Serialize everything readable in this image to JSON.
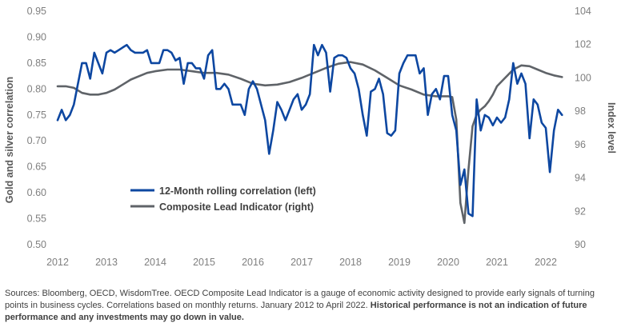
{
  "chart_data": {
    "type": "line",
    "x_ticks": [
      "2012",
      "2013",
      "2014",
      "2015",
      "2016",
      "2017",
      "2018",
      "2019",
      "2020",
      "2021",
      "2022"
    ],
    "y_left": {
      "label": "Gold and silver correlation",
      "ylim": [
        0.5,
        0.95
      ],
      "ticks": [
        "0.95",
        "0.90",
        "0.85",
        "0.80",
        "0.75",
        "0.70",
        "0.65",
        "0.60",
        "0.55",
        "0.50"
      ]
    },
    "y_right": {
      "label": "Index level",
      "ylim": [
        90,
        104
      ],
      "ticks": [
        "104",
        "102",
        "100",
        "98",
        "96",
        "94",
        "92",
        "90"
      ]
    },
    "grid": false,
    "legend_placement": "bottom-left",
    "series": [
      {
        "name": "12-Month rolling correlation (left)",
        "axis": "left",
        "color": "#0d47a1",
        "points": [
          [
            "2012-01",
            0.74
          ],
          [
            "2012-02",
            0.76
          ],
          [
            "2012-03",
            0.74
          ],
          [
            "2012-04",
            0.75
          ],
          [
            "2012-05",
            0.77
          ],
          [
            "2012-06",
            0.81
          ],
          [
            "2012-07",
            0.85
          ],
          [
            "2012-08",
            0.85
          ],
          [
            "2012-09",
            0.82
          ],
          [
            "2012-10",
            0.87
          ],
          [
            "2012-11",
            0.85
          ],
          [
            "2012-12",
            0.83
          ],
          [
            "2013-01",
            0.87
          ],
          [
            "2013-02",
            0.875
          ],
          [
            "2013-03",
            0.87
          ],
          [
            "2013-04",
            0.875
          ],
          [
            "2013-05",
            0.88
          ],
          [
            "2013-06",
            0.885
          ],
          [
            "2013-07",
            0.875
          ],
          [
            "2013-08",
            0.87
          ],
          [
            "2013-09",
            0.87
          ],
          [
            "2013-10",
            0.87
          ],
          [
            "2013-11",
            0.875
          ],
          [
            "2013-12",
            0.85
          ],
          [
            "2014-01",
            0.85
          ],
          [
            "2014-02",
            0.85
          ],
          [
            "2014-03",
            0.875
          ],
          [
            "2014-04",
            0.875
          ],
          [
            "2014-05",
            0.87
          ],
          [
            "2014-06",
            0.855
          ],
          [
            "2014-07",
            0.86
          ],
          [
            "2014-08",
            0.81
          ],
          [
            "2014-09",
            0.85
          ],
          [
            "2014-10",
            0.85
          ],
          [
            "2014-11",
            0.84
          ],
          [
            "2014-12",
            0.84
          ],
          [
            "2015-01",
            0.82
          ],
          [
            "2015-02",
            0.865
          ],
          [
            "2015-03",
            0.875
          ],
          [
            "2015-04",
            0.8
          ],
          [
            "2015-05",
            0.8
          ],
          [
            "2015-06",
            0.81
          ],
          [
            "2015-07",
            0.8
          ],
          [
            "2015-08",
            0.77
          ],
          [
            "2015-09",
            0.77
          ],
          [
            "2015-10",
            0.77
          ],
          [
            "2015-11",
            0.75
          ],
          [
            "2015-12",
            0.8
          ],
          [
            "2016-01",
            0.815
          ],
          [
            "2016-02",
            0.8
          ],
          [
            "2016-03",
            0.77
          ],
          [
            "2016-04",
            0.74
          ],
          [
            "2016-05",
            0.675
          ],
          [
            "2016-06",
            0.72
          ],
          [
            "2016-07",
            0.775
          ],
          [
            "2016-08",
            0.76
          ],
          [
            "2016-09",
            0.74
          ],
          [
            "2016-10",
            0.76
          ],
          [
            "2016-11",
            0.78
          ],
          [
            "2016-12",
            0.79
          ],
          [
            "2017-01",
            0.76
          ],
          [
            "2017-02",
            0.77
          ],
          [
            "2017-03",
            0.79
          ],
          [
            "2017-04",
            0.885
          ],
          [
            "2017-05",
            0.865
          ],
          [
            "2017-06",
            0.885
          ],
          [
            "2017-07",
            0.87
          ],
          [
            "2017-08",
            0.795
          ],
          [
            "2017-09",
            0.86
          ],
          [
            "2017-10",
            0.865
          ],
          [
            "2017-11",
            0.865
          ],
          [
            "2017-12",
            0.86
          ],
          [
            "2018-01",
            0.84
          ],
          [
            "2018-02",
            0.83
          ],
          [
            "2018-03",
            0.8
          ],
          [
            "2018-04",
            0.75
          ],
          [
            "2018-05",
            0.71
          ],
          [
            "2018-06",
            0.795
          ],
          [
            "2018-07",
            0.8
          ],
          [
            "2018-08",
            0.82
          ],
          [
            "2018-09",
            0.79
          ],
          [
            "2018-10",
            0.715
          ],
          [
            "2018-11",
            0.71
          ],
          [
            "2018-12",
            0.72
          ],
          [
            "2019-01",
            0.83
          ],
          [
            "2019-02",
            0.85
          ],
          [
            "2019-03",
            0.865
          ],
          [
            "2019-04",
            0.865
          ],
          [
            "2019-05",
            0.865
          ],
          [
            "2019-06",
            0.83
          ],
          [
            "2019-07",
            0.84
          ],
          [
            "2019-08",
            0.75
          ],
          [
            "2019-09",
            0.79
          ],
          [
            "2019-10",
            0.8
          ],
          [
            "2019-11",
            0.78
          ],
          [
            "2019-12",
            0.825
          ],
          [
            "2020-01",
            0.825
          ],
          [
            "2020-02",
            0.75
          ],
          [
            "2020-03",
            0.72
          ],
          [
            "2020-04",
            0.615
          ],
          [
            "2020-05",
            0.645
          ],
          [
            "2020-06",
            0.56
          ],
          [
            "2020-07",
            0.555
          ],
          [
            "2020-08",
            0.78
          ],
          [
            "2020-09",
            0.72
          ],
          [
            "2020-10",
            0.75
          ],
          [
            "2020-11",
            0.745
          ],
          [
            "2020-12",
            0.73
          ],
          [
            "2021-01",
            0.745
          ],
          [
            "2021-02",
            0.735
          ],
          [
            "2021-03",
            0.745
          ],
          [
            "2021-04",
            0.78
          ],
          [
            "2021-05",
            0.85
          ],
          [
            "2021-06",
            0.81
          ],
          [
            "2021-07",
            0.83
          ],
          [
            "2021-08",
            0.81
          ],
          [
            "2021-09",
            0.705
          ],
          [
            "2021-10",
            0.78
          ],
          [
            "2021-11",
            0.77
          ],
          [
            "2021-12",
            0.735
          ],
          [
            "2022-01",
            0.725
          ],
          [
            "2022-02",
            0.64
          ],
          [
            "2022-03",
            0.72
          ],
          [
            "2022-04",
            0.76
          ],
          [
            "2022-05",
            0.75
          ]
        ]
      },
      {
        "name": "Composite Lead Indicator (right)",
        "axis": "right",
        "color": "#5f6368",
        "points": [
          [
            "2012-01",
            99.5
          ],
          [
            "2012-03",
            99.5
          ],
          [
            "2012-05",
            99.4
          ],
          [
            "2012-07",
            99.1
          ],
          [
            "2012-09",
            99.0
          ],
          [
            "2012-11",
            99.0
          ],
          [
            "2013-01",
            99.1
          ],
          [
            "2013-03",
            99.3
          ],
          [
            "2013-05",
            99.6
          ],
          [
            "2013-07",
            99.9
          ],
          [
            "2013-09",
            100.1
          ],
          [
            "2013-11",
            100.3
          ],
          [
            "2014-01",
            100.4
          ],
          [
            "2014-04",
            100.5
          ],
          [
            "2014-07",
            100.5
          ],
          [
            "2014-10",
            100.4
          ],
          [
            "2015-01",
            100.3
          ],
          [
            "2015-04",
            100.3
          ],
          [
            "2015-07",
            100.2
          ],
          [
            "2015-10",
            99.95
          ],
          [
            "2016-01",
            99.65
          ],
          [
            "2016-04",
            99.55
          ],
          [
            "2016-07",
            99.6
          ],
          [
            "2016-10",
            99.75
          ],
          [
            "2017-01",
            100.0
          ],
          [
            "2017-04",
            100.3
          ],
          [
            "2017-07",
            100.6
          ],
          [
            "2017-10",
            100.85
          ],
          [
            "2018-01",
            100.95
          ],
          [
            "2018-04",
            100.8
          ],
          [
            "2018-07",
            100.45
          ],
          [
            "2018-10",
            100.0
          ],
          [
            "2019-01",
            99.55
          ],
          [
            "2019-04",
            99.3
          ],
          [
            "2019-07",
            99.0
          ],
          [
            "2019-10",
            98.9
          ],
          [
            "2020-01",
            98.9
          ],
          [
            "2020-02",
            98.85
          ],
          [
            "2020-03",
            97.5
          ],
          [
            "2020-04",
            92.5
          ],
          [
            "2020-05",
            91.3
          ],
          [
            "2020-06",
            94.5
          ],
          [
            "2020-07",
            97.1
          ],
          [
            "2020-08",
            97.8
          ],
          [
            "2020-09",
            98.1
          ],
          [
            "2020-10",
            98.3
          ],
          [
            "2020-11",
            98.6
          ],
          [
            "2020-12",
            99.0
          ],
          [
            "2021-01",
            99.5
          ],
          [
            "2021-03",
            100.0
          ],
          [
            "2021-05",
            100.5
          ],
          [
            "2021-07",
            100.75
          ],
          [
            "2021-09",
            100.7
          ],
          [
            "2021-11",
            100.5
          ],
          [
            "2022-01",
            100.3
          ],
          [
            "2022-03",
            100.15
          ],
          [
            "2022-05",
            100.05
          ]
        ]
      }
    ]
  },
  "footnote": {
    "text": "Sources: Bloomberg, OECD, WisdomTree. OECD Composite Lead Indicator is a gauge of economic activity designed to provide early signals of turning points in business cycles. Correlations based on monthly returns. January 2012 to April 2022. ",
    "bold": "Historical performance is not an indication of future performance and any investments may go down in value."
  }
}
